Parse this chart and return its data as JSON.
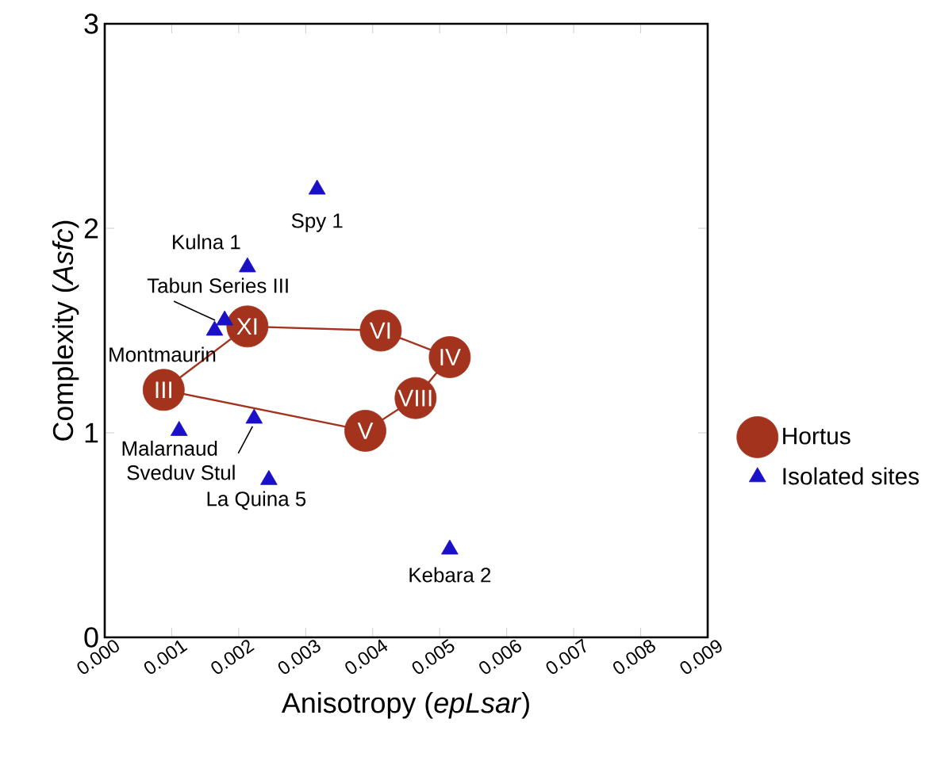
{
  "chart_data": {
    "type": "scatter",
    "xlabel": "Anisotropy (*epLsar*)",
    "ylabel": "Complexity (*Asfc*)",
    "xlim": [
      0,
      0.009
    ],
    "ylim": [
      0,
      3
    ],
    "xticks": [
      {
        "value": 0,
        "label": "0.000"
      },
      {
        "value": 0.001,
        "label": "0.001"
      },
      {
        "value": 0.002,
        "label": "0.002"
      },
      {
        "value": 0.003,
        "label": "0.003"
      },
      {
        "value": 0.004,
        "label": "0.004"
      },
      {
        "value": 0.005,
        "label": "0.005"
      },
      {
        "value": 0.006,
        "label": "0.006"
      },
      {
        "value": 0.007,
        "label": "0.007"
      },
      {
        "value": 0.008,
        "label": "0.008"
      },
      {
        "value": 0.009,
        "label": "0.009"
      }
    ],
    "yticks": [
      0,
      1,
      2,
      3
    ],
    "grid": false,
    "legend": "right",
    "series": [
      {
        "name": "Hortus",
        "color": "#a3331c",
        "marker": "circle",
        "x": [
          0.00088,
          0.00213,
          0.00412,
          0.00515,
          0.00464,
          0.00389
        ],
        "values": [
          1.21,
          1.52,
          1.5,
          1.37,
          1.17,
          1.01
        ]
      },
      {
        "name": "Isolated sites",
        "color": "#1a10c8",
        "marker": "triangle",
        "x": [
          0.00317,
          0.00213,
          0.00179,
          0.00164,
          0.00111,
          0.00223,
          0.00245,
          0.00515
        ],
        "values": [
          2.19,
          1.81,
          1.55,
          1.5,
          1.01,
          1.07,
          0.77,
          0.43
        ]
      },
      {
        "type": "line",
        "color": "#a3331c",
        "marker": "none",
        "x": [
          0.00088,
          0.00213,
          0.00412,
          0.00515
        ],
        "values": [
          1.21,
          1.52,
          1.5,
          1.37
        ]
      },
      {
        "type": "line",
        "color": "#a3331c",
        "marker": "none",
        "x": [
          0.00088,
          0.00389,
          0.00464,
          0.00515
        ],
        "values": [
          1.21,
          1.01,
          1.17,
          1.37
        ]
      }
    ],
    "annotations": [
      {
        "text": "III",
        "x": 0.00088,
        "y": 1.21
      },
      {
        "text": "XI",
        "x": 0.00213,
        "y": 1.52
      },
      {
        "text": "VI",
        "x": 0.00412,
        "y": 1.5
      },
      {
        "text": "IV",
        "x": 0.00515,
        "y": 1.37
      },
      {
        "text": "VIII",
        "x": 0.00464,
        "y": 1.17
      },
      {
        "text": "V",
        "x": 0.00389,
        "y": 1.01
      },
      {
        "text": "Spy 1",
        "x": 0.00317,
        "y": 2.19
      },
      {
        "text": "Kulna 1",
        "x": 0.00213,
        "y": 1.81
      },
      {
        "text": "Tabun Series III",
        "x": 0.00179,
        "y": 1.55
      },
      {
        "text": "Montmaurin",
        "x": 0.00164,
        "y": 1.5
      },
      {
        "text": "Malarnaud",
        "x": 0.00111,
        "y": 1.01
      },
      {
        "text": "Sveduv Stul",
        "x": 0.00223,
        "y": 1.07
      },
      {
        "text": "La Quina 5",
        "x": 0.00245,
        "y": 0.77
      },
      {
        "text": "Kebara 2",
        "x": 0.00515,
        "y": 0.43
      }
    ]
  }
}
